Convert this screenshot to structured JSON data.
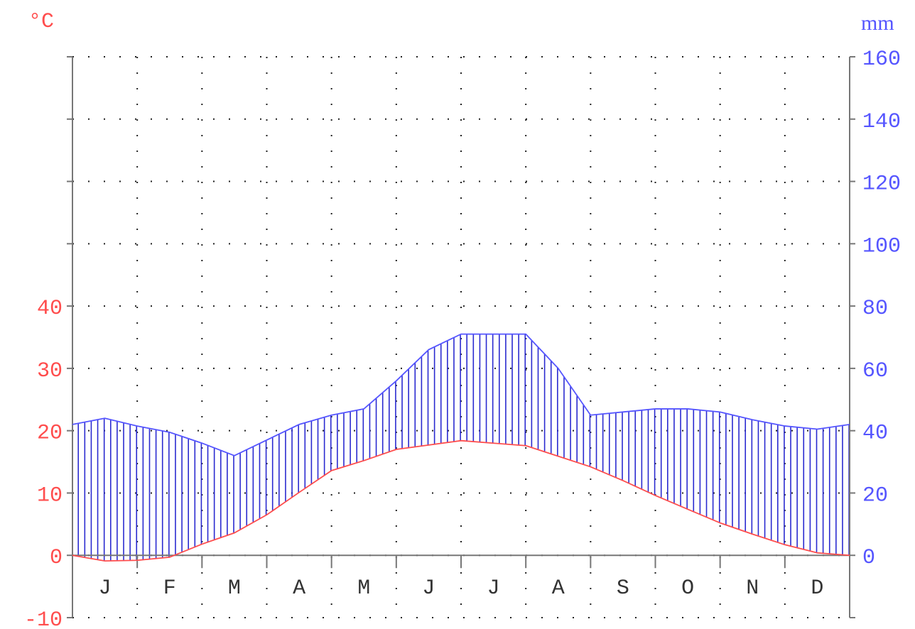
{
  "chart_data": {
    "type": "line",
    "title": "",
    "categories": [
      "J",
      "F",
      "M",
      "A",
      "M",
      "J",
      "J",
      "A",
      "S",
      "O",
      "N",
      "D"
    ],
    "left_axis": {
      "unit": "°C",
      "ylim": [
        -10,
        80
      ],
      "ticks": [
        -10,
        0,
        10,
        20,
        30,
        40
      ],
      "tick_labels": [
        "-10",
        "0",
        "10",
        "20",
        "30",
        "40"
      ],
      "color": "#ff4d4d"
    },
    "right_axis": {
      "unit": "mm",
      "ylim": [
        -20,
        160
      ],
      "ticks": [
        0,
        20,
        40,
        60,
        80,
        100,
        120,
        140,
        160
      ],
      "tick_labels": [
        "0",
        "20",
        "40",
        "60",
        "80",
        "100",
        "120",
        "140",
        "160"
      ],
      "color": "#5555ff"
    },
    "series": [
      {
        "axis": "left",
        "color": "#ff4d4d",
        "x": [
          0,
          0.5,
          1.0,
          1.5,
          2.0,
          2.5,
          3.0,
          3.5,
          4.0,
          4.5,
          5.0,
          5.5,
          6.0,
          6.5,
          7.0,
          7.5,
          8.0,
          8.5,
          9.0,
          9.5,
          10.0,
          10.5,
          11.0,
          11.5,
          12.0
        ],
        "values": [
          0,
          -0.9,
          -0.8,
          -0.3,
          1.8,
          3.6,
          6.5,
          10.1,
          13.6,
          15.2,
          17.0,
          17.7,
          18.4,
          18.0,
          17.6,
          15.9,
          14.2,
          12.0,
          9.6,
          7.4,
          5.2,
          3.4,
          1.7,
          0.4,
          0
        ]
      },
      {
        "axis": "right",
        "color": "#5555ff",
        "x": [
          0,
          0.5,
          1.0,
          1.5,
          2.0,
          2.5,
          3.0,
          3.5,
          4.0,
          4.5,
          5.0,
          5.5,
          6.0,
          6.5,
          7.0,
          7.5,
          8.0,
          8.5,
          9.0,
          9.5,
          10.0,
          10.5,
          11.0,
          11.5,
          12.0
        ],
        "values": [
          42,
          44,
          41.5,
          39.5,
          36,
          32,
          37,
          42,
          45,
          47,
          56,
          66,
          71,
          71,
          71,
          60,
          45,
          46,
          47,
          47,
          46,
          43.5,
          41.5,
          40.5,
          42
        ]
      }
    ],
    "hatch_between": "blue series above red series",
    "grid": "dotted"
  }
}
